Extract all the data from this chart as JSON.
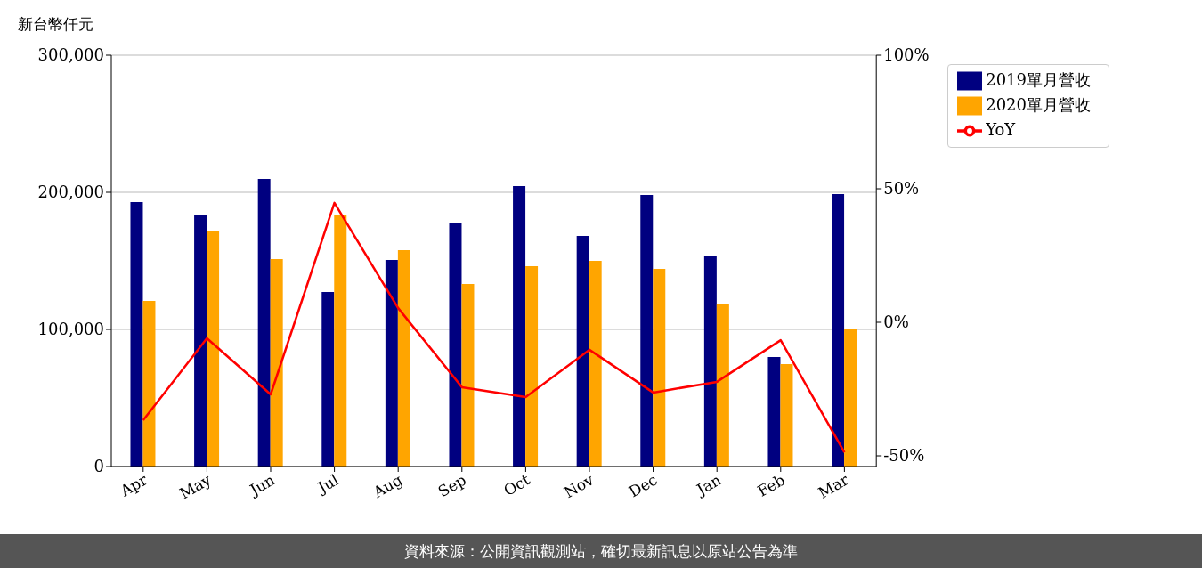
{
  "chart_data": {
    "type": "bar",
    "ylabel": "新台幣仟元",
    "categories": [
      "Apr",
      "May",
      "Jun",
      "Jul",
      "Aug",
      "Sep",
      "Oct",
      "Nov",
      "Dec",
      "Jan",
      "Feb",
      "Mar"
    ],
    "series": [
      {
        "name": "2019單月營收",
        "color": "#000080",
        "values": [
          192900,
          183800,
          209700,
          127300,
          150600,
          177900,
          204500,
          168200,
          198000,
          153900,
          79900,
          198700
        ]
      },
      {
        "name": "2020單月營收",
        "color": "#ffa500",
        "values": [
          120800,
          171400,
          151300,
          183100,
          157800,
          133100,
          146100,
          150000,
          144200,
          118800,
          74700,
          100600
        ]
      },
      {
        "name": "YoY",
        "type": "line",
        "axis": "y2",
        "color": "#ff0000",
        "values": [
          -36.7,
          -6,
          -27,
          44.7,
          5.3,
          -24.3,
          -28,
          -10.3,
          -26.3,
          -22.3,
          -6.7,
          -48.7
        ]
      }
    ],
    "ylim": [
      0,
      300000
    ],
    "yticks": [
      0,
      {
        "value": 100000,
        "label": "100,000"
      },
      {
        "value": 200000,
        "label": "200,000"
      },
      {
        "value": 300000,
        "label": "300,000"
      }
    ],
    "y2lim": [
      -54,
      100
    ],
    "y2ticks": [
      {
        "value": -50,
        "label": "-50%"
      },
      {
        "value": 0,
        "label": "0%"
      },
      {
        "value": 50,
        "label": "50%"
      },
      {
        "value": 100,
        "label": "100%"
      }
    ],
    "grid": "y",
    "legend": "top right",
    "marker": "none",
    "line_style": "solid",
    "annotations": [
      "資料來源：公開資訊觀測站，確切最新訊息以原站公告為準"
    ]
  }
}
